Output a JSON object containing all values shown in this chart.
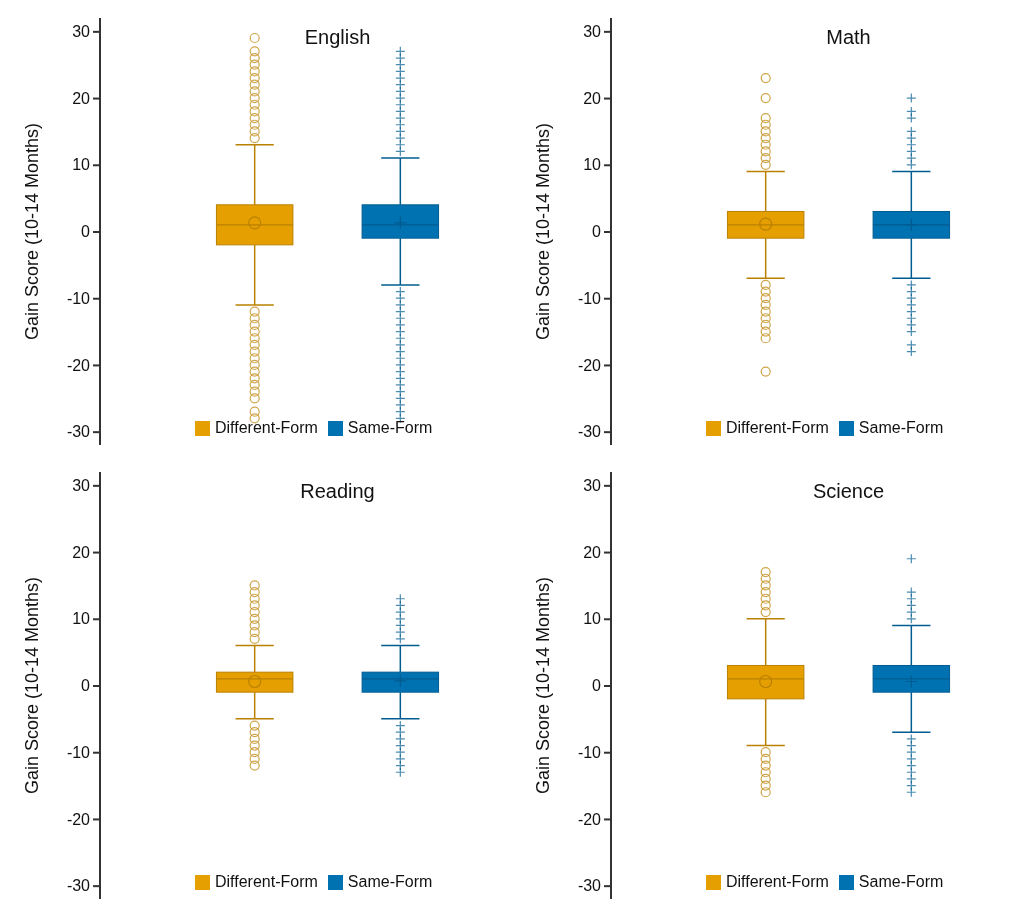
{
  "chart_data": [
    {
      "type": "box",
      "title": "English",
      "ylabel": "Gain Score (10-14 Months)",
      "categories": [
        "Different-Form",
        "Same-Form"
      ],
      "tick_labels": "y",
      "ylim": [
        -32,
        32
      ],
      "yticks": [
        -30,
        -20,
        -10,
        0,
        10,
        20,
        30
      ],
      "legend": "bottom",
      "series": [
        {
          "name": "Different-Form",
          "color": "#e69f00",
          "marker": "circle",
          "x": [
            "Different-Form"
          ],
          "boxes": [
            {
              "low": -11,
              "q1": -2,
              "median": 1,
              "q3": 4,
              "high": 13,
              "mean": 1.3,
              "outliers": [
                14,
                15,
                16,
                17,
                18,
                19,
                20,
                21,
                22,
                23,
                24,
                25,
                26,
                27,
                29,
                -12,
                -13,
                -14,
                -15,
                -16,
                -17,
                -18,
                -19,
                -20,
                -21,
                -22,
                -23,
                -24,
                -25,
                -27,
                -28
              ]
            }
          ]
        },
        {
          "name": "Same-Form",
          "color": "#0072b2",
          "marker": "cross",
          "x": [
            "Same-Form"
          ],
          "boxes": [
            {
              "low": -8,
              "q1": -1,
              "median": 1,
              "q3": 4,
              "high": 11,
              "mean": 1.3,
              "outliers": [
                12,
                13,
                14,
                15,
                16,
                17,
                18,
                19,
                20,
                21,
                22,
                23,
                24,
                25,
                26,
                27,
                -9,
                -10,
                -11,
                -12,
                -13,
                -14,
                -15,
                -16,
                -17,
                -18,
                -19,
                -20,
                -21,
                -22,
                -23,
                -24,
                -25,
                -26,
                -27,
                -28
              ]
            }
          ]
        }
      ]
    },
    {
      "type": "box",
      "title": "Math",
      "ylabel": "Gain Score (10-14 Months)",
      "categories": [
        "Different-Form",
        "Same-Form"
      ],
      "tick_labels": "y",
      "ylim": [
        -32,
        32
      ],
      "yticks": [
        -30,
        -20,
        -10,
        0,
        10,
        20,
        30
      ],
      "legend": "bottom",
      "series": [
        {
          "name": "Different-Form",
          "color": "#e69f00",
          "marker": "circle",
          "x": [
            "Different-Form"
          ],
          "boxes": [
            {
              "low": -7,
              "q1": -1,
              "median": 1,
              "q3": 3,
              "high": 9,
              "mean": 1.1,
              "outliers": [
                10,
                11,
                12,
                13,
                14,
                15,
                16,
                17,
                20,
                23,
                -8,
                -9,
                -10,
                -11,
                -12,
                -13,
                -14,
                -15,
                -16,
                -21
              ]
            }
          ]
        },
        {
          "name": "Same-Form",
          "color": "#0072b2",
          "marker": "cross",
          "x": [
            "Same-Form"
          ],
          "boxes": [
            {
              "low": -7,
              "q1": -1,
              "median": 1,
              "q3": 3,
              "high": 9,
              "mean": 1,
              "outliers": [
                10,
                11,
                12,
                13,
                14,
                15,
                17,
                18,
                20,
                -8,
                -9,
                -10,
                -11,
                -12,
                -13,
                -14,
                -15,
                -17,
                -18
              ]
            }
          ]
        }
      ]
    },
    {
      "type": "box",
      "title": "Reading",
      "ylabel": "Gain Score (10-14 Months)",
      "categories": [
        "Different-Form",
        "Same-Form"
      ],
      "tick_labels": "y",
      "ylim": [
        -32,
        32
      ],
      "yticks": [
        -30,
        -20,
        -10,
        0,
        10,
        20,
        30
      ],
      "legend": "bottom",
      "series": [
        {
          "name": "Different-Form",
          "color": "#e69f00",
          "marker": "circle",
          "x": [
            "Different-Form"
          ],
          "boxes": [
            {
              "low": -5,
              "q1": -1,
              "median": 1,
              "q3": 2,
              "high": 6,
              "mean": 0.6,
              "outliers": [
                7,
                8,
                9,
                10,
                11,
                12,
                13,
                14,
                15,
                -6,
                -7,
                -8,
                -9,
                -10,
                -11,
                -12
              ]
            }
          ]
        },
        {
          "name": "Same-Form",
          "color": "#0072b2",
          "marker": "cross",
          "x": [
            "Same-Form"
          ],
          "boxes": [
            {
              "low": -5,
              "q1": -1,
              "median": 1,
              "q3": 2,
              "high": 6,
              "mean": 0.7,
              "outliers": [
                7,
                8,
                9,
                10,
                11,
                12,
                13,
                -6,
                -7,
                -8,
                -9,
                -10,
                -11,
                -12,
                -13
              ]
            }
          ]
        }
      ]
    },
    {
      "type": "box",
      "title": "Science",
      "ylabel": "Gain Score (10-14 Months)",
      "categories": [
        "Different-Form",
        "Same-Form"
      ],
      "tick_labels": "y",
      "ylim": [
        -32,
        32
      ],
      "yticks": [
        -30,
        -20,
        -10,
        0,
        10,
        20,
        30
      ],
      "legend": "bottom",
      "series": [
        {
          "name": "Different-Form",
          "color": "#e69f00",
          "marker": "circle",
          "x": [
            "Different-Form"
          ],
          "boxes": [
            {
              "low": -9,
              "q1": -2,
              "median": 1,
              "q3": 3,
              "high": 10,
              "mean": 0.6,
              "outliers": [
                11,
                12,
                13,
                14,
                15,
                16,
                17,
                -10,
                -11,
                -12,
                -13,
                -14,
                -15,
                -16
              ]
            }
          ]
        },
        {
          "name": "Same-Form",
          "color": "#0072b2",
          "marker": "cross",
          "x": [
            "Same-Form"
          ],
          "boxes": [
            {
              "low": -7,
              "q1": -1,
              "median": 1,
              "q3": 3,
              "high": 9,
              "mean": 0.6,
              "outliers": [
                10,
                11,
                12,
                13,
                14,
                19,
                -8,
                -9,
                -10,
                -11,
                -12,
                -13,
                -14,
                -15,
                -16
              ]
            }
          ]
        }
      ]
    }
  ]
}
